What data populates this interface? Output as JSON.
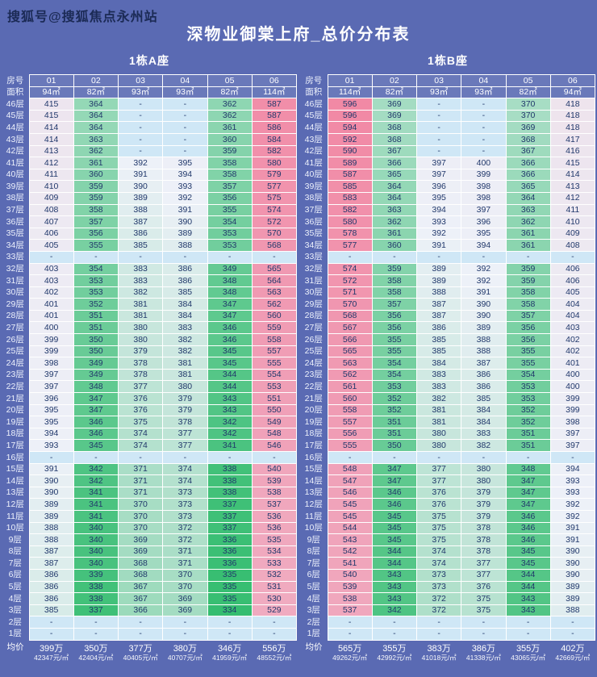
{
  "watermark": "搜狐号@搜狐焦点永州站",
  "title": "深物业御棠上府_总价分布表",
  "header_labels": {
    "room": "房号",
    "area": "面积",
    "avg": "均价"
  },
  "heatmap": {
    "min": 334,
    "mid": 392,
    "max": 596,
    "low_color": "#35bd70",
    "mid_color": "#edf1f8",
    "high_color": "#f189a5",
    "dash_color": "#cfe7f6",
    "value_text_color": "#21386b",
    "page_background": "#5a6ab3"
  },
  "chart_data": [
    {
      "type": "table",
      "name": "1栋A座",
      "units": [
        "01",
        "02",
        "03",
        "04",
        "05",
        "06"
      ],
      "areas": [
        "94㎡",
        "82㎡",
        "93㎡",
        "93㎡",
        "82㎡",
        "114㎡"
      ],
      "floors": [
        "46层",
        "45层",
        "44层",
        "43层",
        "42层",
        "41层",
        "40层",
        "39层",
        "38层",
        "37层",
        "36层",
        "35层",
        "34层",
        "33层",
        "32层",
        "31层",
        "30层",
        "29层",
        "28层",
        "27层",
        "26层",
        "25层",
        "24层",
        "23层",
        "22层",
        "21层",
        "20层",
        "19层",
        "18层",
        "17层",
        "16层",
        "15层",
        "14层",
        "13层",
        "12层",
        "11层",
        "10层",
        "9层",
        "8层",
        "7层",
        "6层",
        "5层",
        "4层",
        "3层",
        "2层",
        "1层"
      ],
      "rows": [
        [
          415,
          364,
          "-",
          "-",
          362,
          587
        ],
        [
          415,
          364,
          "-",
          "-",
          362,
          587
        ],
        [
          414,
          364,
          "-",
          "-",
          361,
          586
        ],
        [
          414,
          363,
          "-",
          "-",
          360,
          584
        ],
        [
          413,
          362,
          "-",
          "-",
          359,
          582
        ],
        [
          412,
          361,
          392,
          395,
          358,
          580
        ],
        [
          411,
          360,
          391,
          394,
          358,
          579
        ],
        [
          410,
          359,
          390,
          393,
          357,
          577
        ],
        [
          409,
          359,
          389,
          392,
          356,
          575
        ],
        [
          408,
          358,
          388,
          391,
          355,
          574
        ],
        [
          407,
          357,
          387,
          390,
          354,
          572
        ],
        [
          406,
          356,
          386,
          389,
          353,
          570
        ],
        [
          405,
          355,
          385,
          388,
          353,
          568
        ],
        [
          "-",
          "-",
          "-",
          "-",
          "-",
          "-"
        ],
        [
          403,
          354,
          383,
          386,
          349,
          565
        ],
        [
          403,
          353,
          383,
          386,
          348,
          564
        ],
        [
          402,
          353,
          382,
          385,
          348,
          563
        ],
        [
          401,
          352,
          381,
          384,
          347,
          562
        ],
        [
          401,
          351,
          381,
          384,
          347,
          560
        ],
        [
          400,
          351,
          380,
          383,
          346,
          559
        ],
        [
          399,
          350,
          380,
          382,
          346,
          558
        ],
        [
          399,
          350,
          379,
          382,
          345,
          557
        ],
        [
          398,
          349,
          378,
          381,
          345,
          555
        ],
        [
          397,
          349,
          378,
          381,
          344,
          554
        ],
        [
          397,
          348,
          377,
          380,
          344,
          553
        ],
        [
          396,
          347,
          376,
          379,
          343,
          551
        ],
        [
          395,
          347,
          376,
          379,
          343,
          550
        ],
        [
          395,
          346,
          375,
          378,
          342,
          549
        ],
        [
          394,
          346,
          374,
          377,
          342,
          548
        ],
        [
          393,
          345,
          374,
          377,
          341,
          546
        ],
        [
          "-",
          "-",
          "-",
          "-",
          "-",
          "-"
        ],
        [
          391,
          342,
          371,
          374,
          338,
          540
        ],
        [
          390,
          342,
          371,
          374,
          338,
          539
        ],
        [
          390,
          341,
          371,
          373,
          338,
          538
        ],
        [
          389,
          341,
          370,
          373,
          337,
          537
        ],
        [
          389,
          341,
          370,
          373,
          337,
          536
        ],
        [
          388,
          340,
          370,
          372,
          337,
          536
        ],
        [
          388,
          340,
          369,
          372,
          336,
          535
        ],
        [
          387,
          340,
          369,
          371,
          336,
          534
        ],
        [
          387,
          340,
          368,
          371,
          336,
          533
        ],
        [
          386,
          339,
          368,
          370,
          335,
          532
        ],
        [
          386,
          338,
          367,
          370,
          335,
          531
        ],
        [
          386,
          338,
          367,
          369,
          335,
          530
        ],
        [
          385,
          337,
          366,
          369,
          334,
          529
        ],
        [
          "-",
          "-",
          "-",
          "-",
          "-",
          "-"
        ],
        [
          "-",
          "-",
          "-",
          "-",
          "-",
          "-"
        ]
      ],
      "avg_total": [
        "399万",
        "350万",
        "377万",
        "380万",
        "346万",
        "556万"
      ],
      "avg_unit": [
        "42347元/㎡",
        "42404元/㎡",
        "40405元/㎡",
        "40707元/㎡",
        "41959元/㎡",
        "48552元/㎡"
      ]
    },
    {
      "type": "table",
      "name": "1栋B座",
      "units": [
        "01",
        "02",
        "03",
        "04",
        "05",
        "06"
      ],
      "areas": [
        "114㎡",
        "82㎡",
        "93㎡",
        "93㎡",
        "82㎡",
        "94㎡"
      ],
      "floors": [
        "46层",
        "45层",
        "44层",
        "43层",
        "42层",
        "41层",
        "40层",
        "39层",
        "38层",
        "37层",
        "36层",
        "35层",
        "34层",
        "33层",
        "32层",
        "31层",
        "30层",
        "29层",
        "28层",
        "27层",
        "26层",
        "25层",
        "24层",
        "23层",
        "22层",
        "21层",
        "20层",
        "19层",
        "18层",
        "17层",
        "16层",
        "15层",
        "14层",
        "13层",
        "12层",
        "11层",
        "10层",
        "9层",
        "8层",
        "7层",
        "6层",
        "5层",
        "4层",
        "3层",
        "2层",
        "1层"
      ],
      "rows": [
        [
          596,
          369,
          "-",
          "-",
          370,
          418
        ],
        [
          596,
          369,
          "-",
          "-",
          370,
          418
        ],
        [
          594,
          368,
          "-",
          "-",
          369,
          418
        ],
        [
          592,
          368,
          "-",
          "-",
          368,
          417
        ],
        [
          590,
          367,
          "-",
          "-",
          367,
          416
        ],
        [
          589,
          366,
          397,
          400,
          366,
          415
        ],
        [
          587,
          365,
          397,
          399,
          366,
          414
        ],
        [
          585,
          364,
          396,
          398,
          365,
          413
        ],
        [
          583,
          364,
          395,
          398,
          364,
          412
        ],
        [
          582,
          363,
          394,
          397,
          363,
          411
        ],
        [
          580,
          362,
          393,
          396,
          362,
          410
        ],
        [
          578,
          361,
          392,
          395,
          361,
          409
        ],
        [
          577,
          360,
          391,
          394,
          361,
          408
        ],
        [
          "-",
          "-",
          "-",
          "-",
          "-",
          "-"
        ],
        [
          574,
          359,
          389,
          392,
          359,
          406
        ],
        [
          572,
          358,
          389,
          392,
          359,
          406
        ],
        [
          571,
          358,
          388,
          391,
          358,
          405
        ],
        [
          570,
          357,
          387,
          390,
          358,
          404
        ],
        [
          568,
          356,
          387,
          390,
          357,
          404
        ],
        [
          567,
          356,
          386,
          389,
          356,
          403
        ],
        [
          566,
          355,
          385,
          388,
          356,
          402
        ],
        [
          565,
          355,
          385,
          388,
          355,
          402
        ],
        [
          563,
          354,
          384,
          387,
          355,
          401
        ],
        [
          562,
          354,
          383,
          386,
          354,
          400
        ],
        [
          561,
          353,
          383,
          386,
          353,
          400
        ],
        [
          560,
          352,
          382,
          385,
          353,
          399
        ],
        [
          558,
          352,
          381,
          384,
          352,
          399
        ],
        [
          557,
          351,
          381,
          384,
          352,
          398
        ],
        [
          556,
          351,
          380,
          383,
          351,
          397
        ],
        [
          555,
          350,
          380,
          382,
          351,
          397
        ],
        [
          "-",
          "-",
          "-",
          "-",
          "-",
          "-"
        ],
        [
          548,
          347,
          377,
          380,
          348,
          394
        ],
        [
          547,
          347,
          377,
          380,
          347,
          393
        ],
        [
          546,
          346,
          376,
          379,
          347,
          393
        ],
        [
          545,
          346,
          376,
          379,
          347,
          392
        ],
        [
          545,
          345,
          375,
          379,
          346,
          392
        ],
        [
          544,
          345,
          375,
          378,
          346,
          391
        ],
        [
          543,
          345,
          375,
          378,
          346,
          391
        ],
        [
          542,
          344,
          374,
          378,
          345,
          390
        ],
        [
          541,
          344,
          374,
          377,
          345,
          390
        ],
        [
          540,
          343,
          373,
          377,
          344,
          390
        ],
        [
          539,
          343,
          373,
          376,
          344,
          389
        ],
        [
          538,
          343,
          372,
          375,
          343,
          389
        ],
        [
          537,
          342,
          372,
          375,
          343,
          388
        ],
        [
          "-",
          "-",
          "-",
          "-",
          "-",
          "-"
        ],
        [
          "-",
          "-",
          "-",
          "-",
          "-",
          "-"
        ]
      ],
      "avg_total": [
        "565万",
        "355万",
        "383万",
        "386万",
        "355万",
        "402万"
      ],
      "avg_unit": [
        "49262元/㎡",
        "42992元/㎡",
        "41018元/㎡",
        "41338元/㎡",
        "43065元/㎡",
        "42669元/㎡"
      ]
    }
  ]
}
